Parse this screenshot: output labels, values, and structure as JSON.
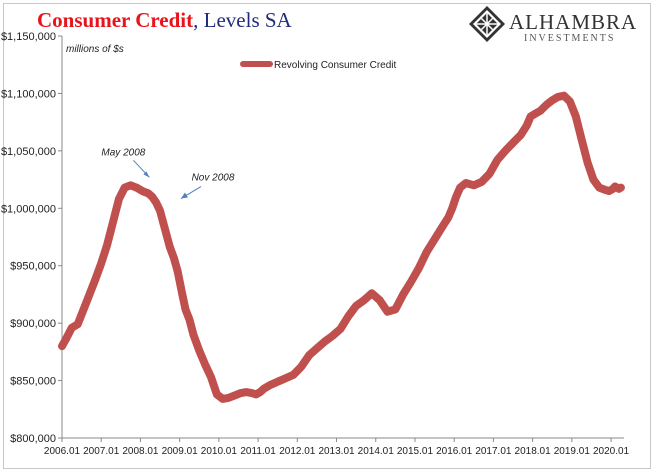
{
  "header": {
    "title_red": "Consumer Credit",
    "title_blue": ", Levels SA"
  },
  "logo": {
    "name": "ALHAMBRA",
    "sub": "INVESTMENTS"
  },
  "chart_data": {
    "type": "line",
    "title": "Consumer Credit, Levels SA",
    "subtitle": "millions of $s",
    "ylim": [
      800000,
      1150000
    ],
    "yticks": [
      {
        "value": 800000,
        "label": "$800,000"
      },
      {
        "value": 850000,
        "label": "$850,000"
      },
      {
        "value": 900000,
        "label": "$900,000"
      },
      {
        "value": 950000,
        "label": "$950,000"
      },
      {
        "value": 1000000,
        "label": "$1,000,000"
      },
      {
        "value": 1050000,
        "label": "$1,050,000"
      },
      {
        "value": 1100000,
        "label": "$1,100,000"
      },
      {
        "value": 1150000,
        "label": "$1,150,000"
      }
    ],
    "xlim": [
      2006.0,
      2020.33
    ],
    "xticks": [
      {
        "value": 2006,
        "label": "2006.01"
      },
      {
        "value": 2007,
        "label": "2007.01"
      },
      {
        "value": 2008,
        "label": "2008.01"
      },
      {
        "value": 2009,
        "label": "2009.01"
      },
      {
        "value": 2010,
        "label": "2010.01"
      },
      {
        "value": 2011,
        "label": "2011.01"
      },
      {
        "value": 2012,
        "label": "2012.01"
      },
      {
        "value": 2013,
        "label": "2013.01"
      },
      {
        "value": 2014,
        "label": "2014.01"
      },
      {
        "value": 2015,
        "label": "2015.01"
      },
      {
        "value": 2016,
        "label": "2016.01"
      },
      {
        "value": 2017,
        "label": "2017.01"
      },
      {
        "value": 2018,
        "label": "2018.01"
      },
      {
        "value": 2019,
        "label": "2019.01"
      },
      {
        "value": 2020,
        "label": "2020.01"
      }
    ],
    "grid": false,
    "legend": "top-left",
    "series": [
      {
        "name": "Revolving Consumer Credit",
        "color": "#c0504d",
        "x": [
          2006.0,
          2006.1,
          2006.25,
          2006.4,
          2006.55,
          2006.7,
          2006.85,
          2007.0,
          2007.15,
          2007.3,
          2007.45,
          2007.6,
          2007.75,
          2007.9,
          2008.05,
          2008.2,
          2008.3,
          2008.4,
          2008.5,
          2008.6,
          2008.75,
          2008.85,
          2008.95,
          2009.05,
          2009.15,
          2009.25,
          2009.35,
          2009.5,
          2009.65,
          2009.8,
          2009.95,
          2010.1,
          2010.25,
          2010.4,
          2010.55,
          2010.7,
          2010.85,
          2010.95,
          2011.05,
          2011.15,
          2011.3,
          2011.5,
          2011.7,
          2011.9,
          2012.1,
          2012.3,
          2012.5,
          2012.7,
          2012.9,
          2013.1,
          2013.3,
          2013.5,
          2013.7,
          2013.9,
          2014.1,
          2014.3,
          2014.5,
          2014.7,
          2014.9,
          2015.1,
          2015.3,
          2015.5,
          2015.7,
          2015.85,
          2015.95,
          2016.05,
          2016.15,
          2016.3,
          2016.5,
          2016.7,
          2016.9,
          2017.1,
          2017.3,
          2017.5,
          2017.7,
          2017.85,
          2017.95,
          2018.05,
          2018.2,
          2018.35,
          2018.5,
          2018.65,
          2018.8,
          2018.95,
          2019.1,
          2019.25,
          2019.4,
          2019.55,
          2019.7,
          2019.85,
          2019.95,
          2020.05,
          2020.1,
          2020.15,
          2020.2,
          2020.25
        ],
        "values": [
          880000,
          886000,
          896000,
          899000,
          912000,
          925000,
          938000,
          952000,
          968000,
          988000,
          1008000,
          1018000,
          1020000,
          1018000,
          1015000,
          1013000,
          1010000,
          1005000,
          998000,
          985000,
          966000,
          957000,
          945000,
          928000,
          912000,
          903000,
          890000,
          876000,
          864000,
          853000,
          838000,
          834000,
          835000,
          837000,
          839000,
          840000,
          839000,
          838000,
          840000,
          843000,
          846000,
          849000,
          852000,
          855000,
          862000,
          872000,
          878000,
          884000,
          889000,
          895000,
          906000,
          915000,
          920000,
          926000,
          920000,
          910000,
          912000,
          925000,
          936000,
          948000,
          962000,
          973000,
          984000,
          992000,
          1000000,
          1010000,
          1018000,
          1022000,
          1020000,
          1023000,
          1030000,
          1042000,
          1050000,
          1057000,
          1064000,
          1072000,
          1080000,
          1082000,
          1085000,
          1090000,
          1094000,
          1097000,
          1098000,
          1093000,
          1080000,
          1060000,
          1040000,
          1025000,
          1018000,
          1016000,
          1015000,
          1017000,
          1019000,
          1018000,
          1017000,
          1018000
        ]
      }
    ],
    "annotations": [
      {
        "text": "May 2008",
        "x": 2008.33,
        "value": 1020000
      },
      {
        "text": "Nov 2008",
        "x": 2008.83,
        "value": 1005000
      }
    ]
  }
}
